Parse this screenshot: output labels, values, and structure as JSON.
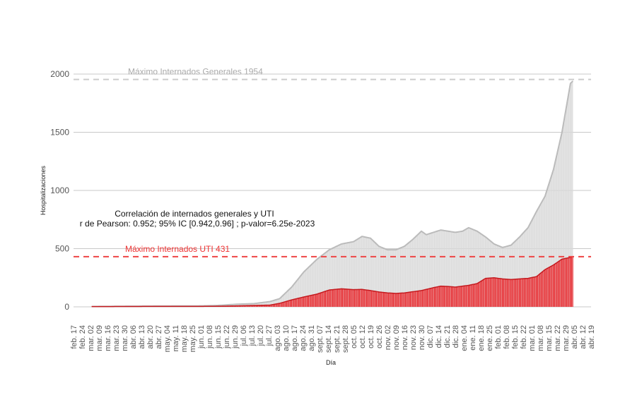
{
  "chart_data": {
    "type": "bar",
    "title": "",
    "xlabel": "Día",
    "ylabel": "Hospitalizaciones",
    "ylim": [
      0,
      2000
    ],
    "yticks": [
      0,
      500,
      1000,
      1500,
      2000
    ],
    "grid": true,
    "x_range": [
      "2020-02-17",
      "2021-04-19"
    ],
    "xtick_dates": [
      "2020-02-17",
      "2020-02-24",
      "2020-03-02",
      "2020-03-09",
      "2020-03-16",
      "2020-03-23",
      "2020-03-30",
      "2020-04-06",
      "2020-04-13",
      "2020-04-20",
      "2020-04-27",
      "2020-05-04",
      "2020-05-11",
      "2020-05-18",
      "2020-05-25",
      "2020-06-01",
      "2020-06-08",
      "2020-06-15",
      "2020-06-22",
      "2020-06-29",
      "2020-07-06",
      "2020-07-13",
      "2020-07-20",
      "2020-07-27",
      "2020-08-03",
      "2020-08-10",
      "2020-08-17",
      "2020-08-24",
      "2020-08-31",
      "2020-09-07",
      "2020-09-14",
      "2020-09-21",
      "2020-09-28",
      "2020-10-05",
      "2020-10-12",
      "2020-10-19",
      "2020-10-26",
      "2020-11-02",
      "2020-11-09",
      "2020-11-16",
      "2020-11-23",
      "2020-11-30",
      "2020-12-07",
      "2020-12-14",
      "2020-12-21",
      "2020-12-28",
      "2021-01-04",
      "2021-01-11",
      "2021-01-18",
      "2021-01-25",
      "2021-02-01",
      "2021-02-08",
      "2021-02-15",
      "2021-02-22",
      "2021-03-01",
      "2021-03-08",
      "2021-03-15",
      "2021-03-22",
      "2021-03-29",
      "2021-04-05",
      "2021-04-12",
      "2021-04-19"
    ],
    "xtick_labels": [
      "feb. 17",
      "feb. 24",
      "mar. 02",
      "mar. 09",
      "mar. 16",
      "mar. 23",
      "mar. 30",
      "abr. 06",
      "abr. 13",
      "abr. 20",
      "abr. 27",
      "may. 04",
      "may. 11",
      "may. 18",
      "may. 25",
      "jun. 01",
      "jun. 08",
      "jun. 15",
      "jun. 22",
      "jun. 29",
      "jul. 06",
      "jul. 13",
      "jul. 20",
      "jul. 27",
      "ago. 03",
      "ago. 10",
      "ago. 17",
      "ago. 24",
      "ago. 31",
      "sept. 07",
      "sept. 14",
      "sept. 21",
      "sept. 28",
      "oct. 05",
      "oct. 12",
      "oct. 19",
      "oct. 26",
      "nov. 02",
      "nov. 09",
      "nov. 16",
      "nov. 23",
      "nov. 30",
      "dic. 07",
      "dic. 14",
      "dic. 21",
      "dic. 28",
      "ene. 04",
      "ene. 11",
      "ene. 18",
      "ene. 25",
      "feb. 01",
      "feb. 08",
      "feb. 15",
      "feb. 22",
      "mar. 01",
      "mar. 08",
      "mar. 15",
      "mar. 22",
      "mar. 29",
      "abr. 05",
      "abr. 12",
      "abr. 19"
    ],
    "reference_lines": [
      {
        "label": "Máximo Internados Generales 1954",
        "y": 1954,
        "color": "#cccccc"
      },
      {
        "label": "Máximo Internados UTI 431",
        "y": 431,
        "color": "#ee4444"
      }
    ],
    "annotation": {
      "line1": "Correlación de internados generales y UTI",
      "line2": "r de Pearson: 0.952; 95% IC [0.942,0.96] ; p-valor=6.25e-2023"
    },
    "series": [
      {
        "key": "generales",
        "color": "#d9d9d9",
        "line_color": "#bbbbbb",
        "x": [
          "2020-03-03",
          "2020-04-01",
          "2020-05-01",
          "2020-06-01",
          "2020-06-15",
          "2020-06-30",
          "2020-07-15",
          "2020-07-28",
          "2020-08-05",
          "2020-08-15",
          "2020-08-25",
          "2020-09-05",
          "2020-09-15",
          "2020-09-25",
          "2020-10-05",
          "2020-10-12",
          "2020-10-19",
          "2020-10-26",
          "2020-11-02",
          "2020-11-09",
          "2020-11-16",
          "2020-11-23",
          "2020-11-30",
          "2020-12-04",
          "2020-12-10",
          "2020-12-16",
          "2020-12-22",
          "2020-12-28",
          "2021-01-03",
          "2021-01-08",
          "2021-01-15",
          "2021-01-22",
          "2021-01-29",
          "2021-02-05",
          "2021-02-12",
          "2021-02-19",
          "2021-02-26",
          "2021-03-05",
          "2021-03-12",
          "2021-03-19",
          "2021-03-26",
          "2021-04-02",
          "2021-04-04"
        ],
        "values": [
          3,
          5,
          7,
          8,
          12,
          22,
          28,
          45,
          70,
          170,
          300,
          410,
          490,
          540,
          560,
          605,
          590,
          520,
          490,
          490,
          520,
          580,
          650,
          620,
          640,
          660,
          650,
          640,
          650,
          680,
          650,
          600,
          540,
          510,
          530,
          600,
          680,
          820,
          950,
          1180,
          1500,
          1920,
          1940
        ]
      },
      {
        "key": "uti",
        "color": "#e8262b",
        "x": [
          "2020-03-03",
          "2020-04-01",
          "2020-05-01",
          "2020-06-01",
          "2020-06-15",
          "2020-06-30",
          "2020-07-15",
          "2020-07-28",
          "2020-08-05",
          "2020-08-15",
          "2020-08-25",
          "2020-09-05",
          "2020-09-15",
          "2020-09-25",
          "2020-10-05",
          "2020-10-12",
          "2020-10-19",
          "2020-10-26",
          "2020-11-02",
          "2020-11-09",
          "2020-11-16",
          "2020-11-23",
          "2020-11-30",
          "2020-12-04",
          "2020-12-10",
          "2020-12-16",
          "2020-12-22",
          "2020-12-28",
          "2021-01-03",
          "2021-01-08",
          "2021-01-15",
          "2021-01-22",
          "2021-01-29",
          "2021-02-05",
          "2021-02-12",
          "2021-02-19",
          "2021-02-26",
          "2021-03-05",
          "2021-03-12",
          "2021-03-19",
          "2021-03-26",
          "2021-04-02",
          "2021-04-04"
        ],
        "values": [
          2,
          3,
          4,
          4,
          5,
          8,
          12,
          15,
          30,
          60,
          85,
          110,
          145,
          155,
          148,
          150,
          140,
          128,
          120,
          115,
          120,
          130,
          140,
          150,
          165,
          178,
          175,
          170,
          178,
          185,
          200,
          245,
          250,
          240,
          235,
          240,
          245,
          260,
          320,
          360,
          410,
          425,
          431
        ]
      }
    ]
  }
}
